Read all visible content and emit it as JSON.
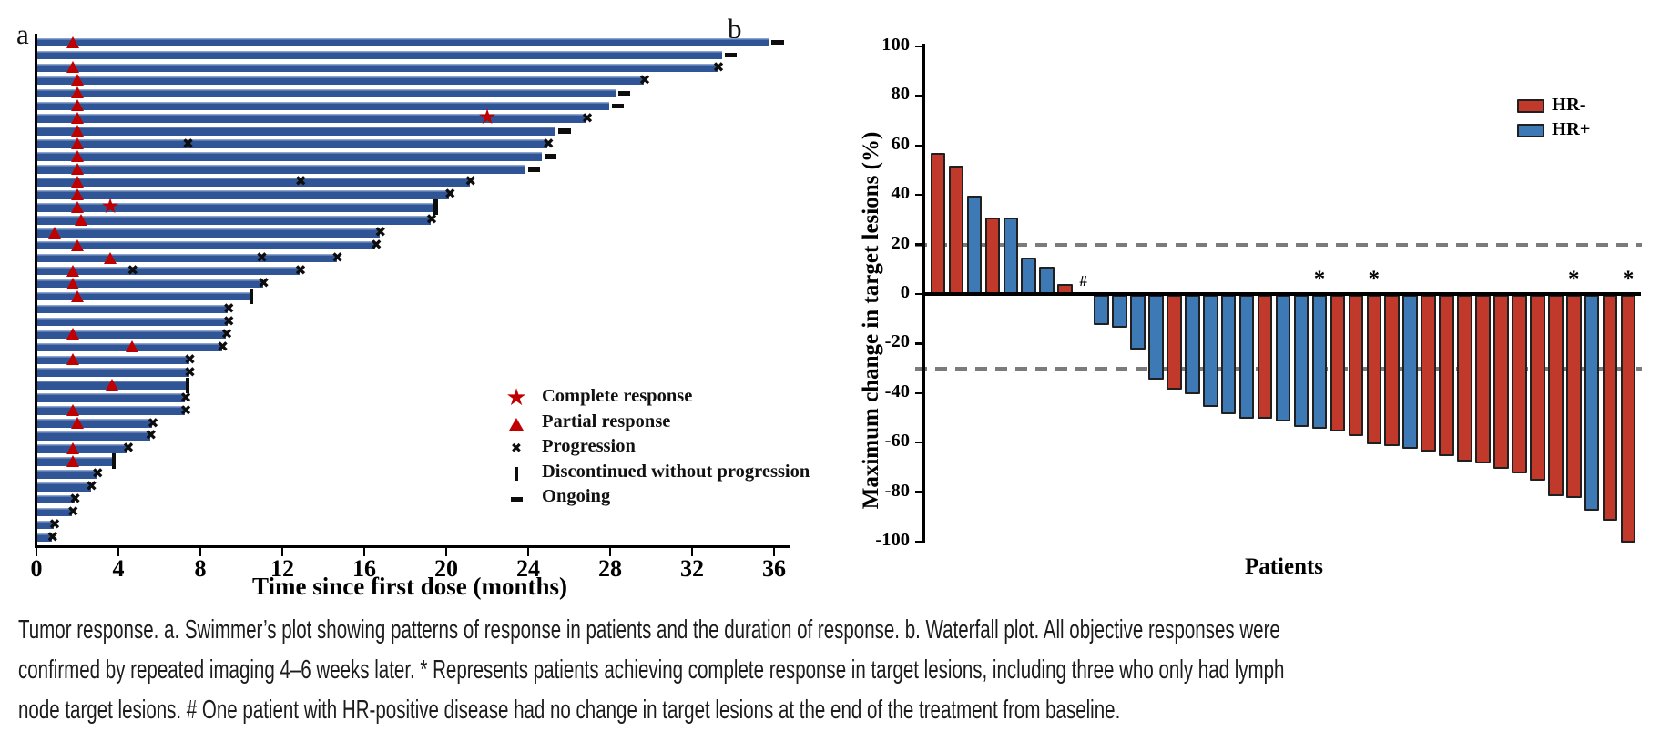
{
  "figure": {
    "panel_a_label": "a",
    "panel_b_label": "b"
  },
  "chart_data": [
    {
      "type": "bar",
      "subtype": "swimmer",
      "xlabel": "Time since first dose (months)",
      "xlim": [
        0,
        37
      ],
      "x_ticks": [
        0,
        4,
        8,
        12,
        16,
        20,
        24,
        28,
        32,
        36
      ],
      "grid": false,
      "bar_color": "#2F5597",
      "bar_highlight": "#8BA3CD",
      "response_marker_color": "#C00000",
      "event_marker_color": "#0D0D0D",
      "legend_position": "lower right inside",
      "legend": [
        {
          "icon": "star-icon",
          "label": "Complete response"
        },
        {
          "icon": "triangle-icon",
          "label": "Partial response"
        },
        {
          "icon": "x-icon",
          "label": "Progression"
        },
        {
          "icon": "vbar-icon",
          "label": "Discontinued without progression"
        },
        {
          "icon": "dash-icon",
          "label": "Ongoing"
        }
      ],
      "patients": [
        {
          "dur": 35.7,
          "pr": 1.8,
          "end": "ongoing"
        },
        {
          "dur": 33.4,
          "end": "ongoing"
        },
        {
          "dur": 33.2,
          "pr": 1.8,
          "end": "progression"
        },
        {
          "dur": 29.6,
          "pr": 2.0,
          "end": "progression"
        },
        {
          "dur": 28.2,
          "pr": 2.0,
          "end": "ongoing"
        },
        {
          "dur": 27.9,
          "pr": 2.0,
          "end": "ongoing"
        },
        {
          "dur": 26.8,
          "pr": 2.0,
          "cr": 22.0,
          "end": "progression"
        },
        {
          "dur": 25.3,
          "pr": 2.0,
          "end": "ongoing"
        },
        {
          "dur": 24.9,
          "pr": 2.0,
          "xm": 7.4,
          "end": "progression"
        },
        {
          "dur": 24.6,
          "pr": 2.0,
          "end": "ongoing"
        },
        {
          "dur": 23.8,
          "pr": 2.0,
          "end": "ongoing"
        },
        {
          "dur": 21.1,
          "pr": 2.0,
          "xm": 12.9,
          "end": "progression"
        },
        {
          "dur": 20.1,
          "pr": 2.0,
          "end": "progression"
        },
        {
          "dur": 19.4,
          "pr": 2.0,
          "cr": 3.6,
          "end": "discontinued"
        },
        {
          "dur": 19.2,
          "pr": 2.2,
          "end": "progression"
        },
        {
          "dur": 16.7,
          "pr": 0.9,
          "end": "progression"
        },
        {
          "dur": 16.5,
          "pr": 2.0,
          "end": "progression"
        },
        {
          "dur": 14.6,
          "pr": 3.6,
          "xm": 11.0,
          "end": "progression"
        },
        {
          "dur": 12.8,
          "pr": 1.8,
          "xm": 4.7,
          "end": "progression"
        },
        {
          "dur": 11.0,
          "pr": 1.8,
          "end": "progression"
        },
        {
          "dur": 10.4,
          "pr": 2.0,
          "end": "discontinued"
        },
        {
          "dur": 9.3,
          "end": "progression"
        },
        {
          "dur": 9.3,
          "end": "progression"
        },
        {
          "dur": 9.2,
          "pr": 1.8,
          "end": "progression"
        },
        {
          "dur": 9.0,
          "pr": 4.7,
          "end": "progression"
        },
        {
          "dur": 7.4,
          "pr": 1.8,
          "end": "progression"
        },
        {
          "dur": 7.4,
          "end": "progression"
        },
        {
          "dur": 7.3,
          "pr": 3.7,
          "end": "discontinued"
        },
        {
          "dur": 7.2,
          "end": "progression"
        },
        {
          "dur": 7.2,
          "pr": 1.8,
          "end": "progression"
        },
        {
          "dur": 5.6,
          "pr": 2.0,
          "end": "progression"
        },
        {
          "dur": 5.5,
          "end": "progression"
        },
        {
          "dur": 4.4,
          "pr": 1.8,
          "end": "progression"
        },
        {
          "dur": 3.7,
          "pr": 1.8,
          "end": "discontinued"
        },
        {
          "dur": 2.9,
          "end": "progression"
        },
        {
          "dur": 2.6,
          "end": "progression"
        },
        {
          "dur": 1.8,
          "end": "progression"
        },
        {
          "dur": 1.7,
          "end": "progression"
        },
        {
          "dur": 0.8,
          "end": "progression"
        },
        {
          "dur": 0.7,
          "end": "progression"
        }
      ]
    },
    {
      "type": "bar",
      "subtype": "waterfall",
      "ylabel": "Maximum change in target lesions (%)",
      "xlabel": "Patients",
      "ylim": [
        -100,
        100
      ],
      "y_ticks": [
        100,
        80,
        60,
        40,
        20,
        0,
        -20,
        -40,
        -60,
        -80,
        -100
      ],
      "reference_lines": [
        20,
        -30
      ],
      "reference_line_color": "#7B7B7B",
      "grid": false,
      "legend_position": "upper right inside",
      "legend": [
        {
          "label": "HR-",
          "color": "#C0392B"
        },
        {
          "label": "HR+",
          "color": "#3C79B5"
        }
      ],
      "group_colors": {
        "HR-": "#C0392B",
        "HR+": "#3C79B5"
      },
      "bar_border_color": "#202020",
      "asterisk_symbol": "*",
      "hash_symbol": "#",
      "patients": [
        {
          "group": "HR-",
          "value": 56
        },
        {
          "group": "HR-",
          "value": 51
        },
        {
          "group": "HR+",
          "value": 39
        },
        {
          "group": "HR-",
          "value": 30
        },
        {
          "group": "HR+",
          "value": 30
        },
        {
          "group": "HR+",
          "value": 14
        },
        {
          "group": "HR+",
          "value": 10
        },
        {
          "group": "HR-",
          "value": 3
        },
        {
          "group": "HR+",
          "value": 0,
          "mark": "#"
        },
        {
          "group": "HR+",
          "value": -12
        },
        {
          "group": "HR+",
          "value": -13
        },
        {
          "group": "HR+",
          "value": -22
        },
        {
          "group": "HR+",
          "value": -34
        },
        {
          "group": "HR-",
          "value": -38
        },
        {
          "group": "HR+",
          "value": -40
        },
        {
          "group": "HR+",
          "value": -45
        },
        {
          "group": "HR+",
          "value": -48
        },
        {
          "group": "HR+",
          "value": -50
        },
        {
          "group": "HR-",
          "value": -50
        },
        {
          "group": "HR+",
          "value": -51
        },
        {
          "group": "HR+",
          "value": -53
        },
        {
          "group": "HR+",
          "value": -54,
          "mark": "*"
        },
        {
          "group": "HR-",
          "value": -55
        },
        {
          "group": "HR-",
          "value": -57
        },
        {
          "group": "HR-",
          "value": -60,
          "mark": "*"
        },
        {
          "group": "HR-",
          "value": -61
        },
        {
          "group": "HR+",
          "value": -62
        },
        {
          "group": "HR-",
          "value": -63
        },
        {
          "group": "HR-",
          "value": -65
        },
        {
          "group": "HR-",
          "value": -67
        },
        {
          "group": "HR-",
          "value": -68
        },
        {
          "group": "HR-",
          "value": -70
        },
        {
          "group": "HR-",
          "value": -72
        },
        {
          "group": "HR-",
          "value": -75
        },
        {
          "group": "HR-",
          "value": -81
        },
        {
          "group": "HR-",
          "value": -82,
          "mark": "*"
        },
        {
          "group": "HR+",
          "value": -87
        },
        {
          "group": "HR-",
          "value": -91
        },
        {
          "group": "HR-",
          "value": -100,
          "mark": "*"
        }
      ]
    }
  ],
  "caption": {
    "line1": "Tumor response. a. Swimmer’s plot showing patterns of response in patients and the duration of response. b. Waterfall plot. All objective responses were",
    "line2": "confirmed by repeated imaging 4–6 weeks later. * Represents patients achieving complete response in target lesions, including three who only had lymph",
    "line3": "node target lesions. # One patient with HR-positive disease had no change in target lesions at the end of the treatment from baseline."
  }
}
